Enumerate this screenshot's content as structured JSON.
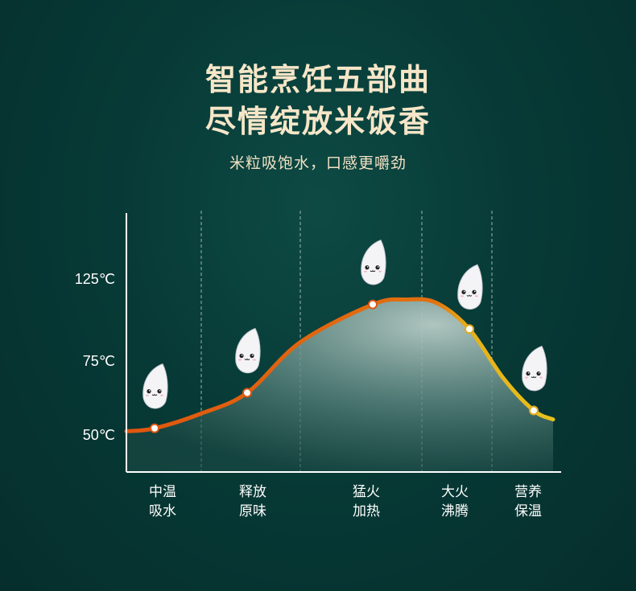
{
  "header": {
    "title_line1": "智能烹饪五部曲",
    "title_line2": "尽情绽放米饭香",
    "subtitle": "米粒吸饱水，口感更嚼劲"
  },
  "chart_data": {
    "type": "line",
    "title": "",
    "xlabel": "",
    "ylabel": "",
    "y_ticks": [
      "125℃",
      "75℃",
      "50℃"
    ],
    "y_tick_values": [
      125,
      75,
      50
    ],
    "categories": [
      [
        "中温",
        "吸水"
      ],
      [
        "释放",
        "原味"
      ],
      [
        "猛火",
        "加热"
      ],
      [
        "大火",
        "沸腾"
      ],
      [
        "营养",
        "保温"
      ]
    ],
    "values": [
      52,
      64,
      109,
      94,
      58
    ],
    "curve_start": 51,
    "curve_peak": 112,
    "curve_end": 55,
    "grid": "dashed vertical stage dividers",
    "colors": {
      "line_start": "#e0560f",
      "line_end": "#e6c21c",
      "fill": "#9fb8b2",
      "axis": "#ffffff",
      "marker": "#ffffff"
    },
    "marker_icon": "rice-grain-mascot-icon"
  }
}
